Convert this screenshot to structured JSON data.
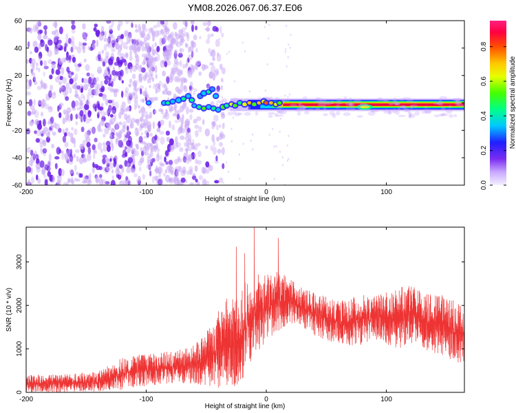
{
  "title": "YM08.2026.067.06.37.E06",
  "colors": {
    "background": "#ffffff",
    "trace": "#ee3333",
    "scatter": "#6a1be6",
    "axes": "#000000"
  },
  "chart_data": [
    {
      "type": "heatmap",
      "xlabel": "Height of straight line (km)",
      "ylabel": "Frequency (Hz)",
      "xlim": [
        -200,
        165
      ],
      "ylim": [
        -60,
        60
      ],
      "x_ticks": [
        -200,
        -100,
        0,
        100
      ],
      "y_ticks": [
        60,
        40,
        20,
        0,
        -20,
        -40,
        -60
      ],
      "grid": false,
      "colorbar": {
        "label": "Normalized spectral amplitude",
        "range": [
          0,
          0.95
        ],
        "ticks": [
          0.0,
          0.2,
          0.4,
          0.6,
          0.8
        ],
        "colormap": "rainbow (violet → blue → cyan → green → yellow → orange → red → magenta)"
      },
      "features": [
        {
          "name": "strong ridge",
          "x_range": [
            -95,
            165
          ],
          "frequency_hz": [
            -6,
            4
          ],
          "amplitude": "0.2–0.95"
        },
        {
          "name": "broadband noise",
          "x_range": [
            -200,
            -40
          ],
          "frequency_hz": [
            -60,
            60
          ],
          "amplitude": "0.0–0.15"
        }
      ]
    },
    {
      "type": "line",
      "xlabel": "Height of straight line (km)",
      "ylabel": "SNR (10 * v/v)",
      "xlim": [
        -200,
        165
      ],
      "ylim": [
        0,
        3800
      ],
      "x_ticks": [
        -200,
        -100,
        0,
        100
      ],
      "y_ticks": [
        0,
        1000,
        2000,
        3000
      ],
      "grid": false,
      "envelope": {
        "x": [
          -200,
          -170,
          -140,
          -120,
          -100,
          -80,
          -60,
          -50,
          -40,
          -30,
          -20,
          -10,
          0,
          10,
          20,
          30,
          40,
          50,
          60,
          70,
          80,
          90,
          100,
          110,
          120,
          130,
          140,
          150,
          165
        ],
        "upper": [
          400,
          420,
          480,
          800,
          900,
          950,
          1100,
          1400,
          1900,
          2300,
          2500,
          2900,
          2700,
          2800,
          2600,
          2400,
          2300,
          2200,
          2100,
          2200,
          2300,
          2200,
          2300,
          2400,
          2500,
          2400,
          2300,
          2200,
          2000
        ],
        "lower": [
          0,
          0,
          20,
          50,
          150,
          200,
          200,
          150,
          100,
          50,
          200,
          800,
          1200,
          1400,
          1600,
          1500,
          1300,
          1200,
          1100,
          1000,
          1100,
          1200,
          1100,
          1000,
          1100,
          1000,
          900,
          800,
          600
        ]
      },
      "peaks": [
        {
          "x": -10,
          "y": 3850
        },
        {
          "x": 10,
          "y": 3550
        },
        {
          "x": -25,
          "y": 3350
        },
        {
          "x": -18,
          "y": 3200
        }
      ]
    }
  ]
}
